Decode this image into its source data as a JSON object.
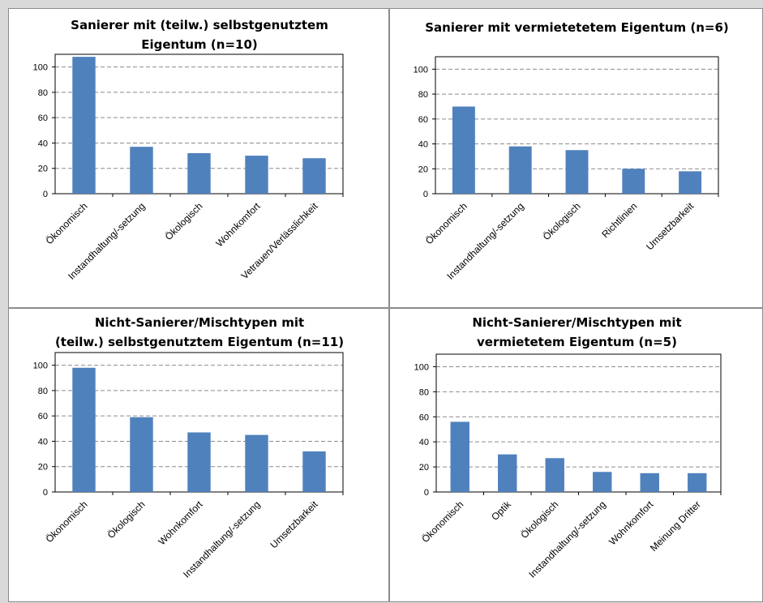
{
  "chart_data": [
    {
      "type": "bar",
      "title_lines": [
        "Sanierer mit (teilw.) selbstgenutztem",
        "Eigentum (n=10)"
      ],
      "categories": [
        "Ökonomisch",
        "Instandhaltung/-setzung",
        "Ökologisch",
        "Wohnkomfort",
        "Vetrauen/Verlässlichkeit"
      ],
      "values": [
        108,
        37,
        32,
        30,
        28
      ],
      "ylim": [
        0,
        110
      ],
      "yticks": [
        0,
        20,
        40,
        60,
        80,
        100
      ],
      "grid": true,
      "color": "#4f81bd"
    },
    {
      "type": "bar",
      "title_lines": [
        "Sanierer mit vermietetetem Eigentum (n=6)"
      ],
      "categories": [
        "Ökonomisch",
        "Instandhaltung/-setzung",
        "Ökologisch",
        "Richtlinien",
        "Umsetzbarkeit"
      ],
      "values": [
        70,
        38,
        35,
        20,
        18
      ],
      "ylim": [
        0,
        110
      ],
      "yticks": [
        0,
        20,
        40,
        60,
        80,
        100
      ],
      "grid": true,
      "color": "#4f81bd"
    },
    {
      "type": "bar",
      "title_lines": [
        "Nicht-Sanierer/Mischtypen mit",
        "(teilw.) selbstgenutztem Eigentum (n=11)"
      ],
      "categories": [
        "Ökonomisch",
        "Ökologisch",
        "Wohnkomfort",
        "Instandhaltung/-setzung",
        "Umsetzbarkeit"
      ],
      "values": [
        98,
        59,
        47,
        45,
        32
      ],
      "ylim": [
        0,
        110
      ],
      "yticks": [
        0,
        20,
        40,
        60,
        80,
        100
      ],
      "grid": true,
      "color": "#4f81bd"
    },
    {
      "type": "bar",
      "title_lines": [
        "Nicht-Sanierer/Mischtypen mit",
        "vermietetem Eigentum (n=5)"
      ],
      "categories": [
        "Ökonomisch",
        "Optik",
        "Ökologisch",
        "Instandhaltung/-setzung",
        "Wohnkomfort",
        "Meinung Dritter"
      ],
      "values": [
        56,
        30,
        27,
        16,
        15,
        15
      ],
      "ylim": [
        0,
        110
      ],
      "yticks": [
        0,
        20,
        40,
        60,
        80,
        100
      ],
      "grid": true,
      "color": "#4f81bd"
    }
  ]
}
